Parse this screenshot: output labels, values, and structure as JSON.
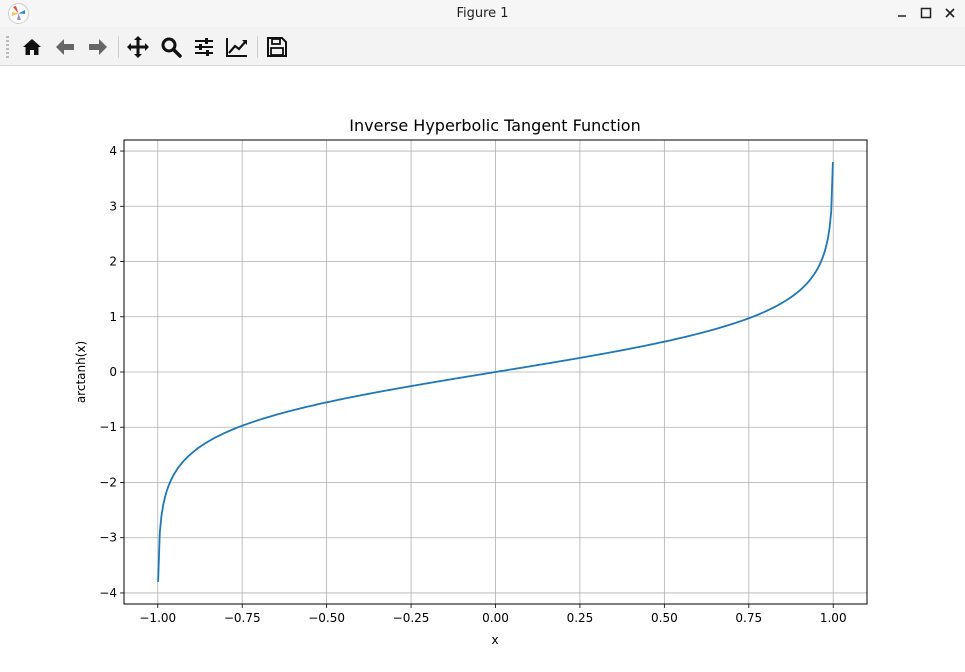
{
  "window": {
    "title": "Figure 1"
  },
  "toolbar": {
    "buttons": [
      {
        "name": "home-button",
        "icon": "home-icon"
      },
      {
        "name": "back-button",
        "icon": "arrow-left-icon"
      },
      {
        "name": "forward-button",
        "icon": "arrow-right-icon"
      },
      {
        "name": "pan-button",
        "icon": "move-icon"
      },
      {
        "name": "zoom-button",
        "icon": "magnifier-icon"
      },
      {
        "name": "configure-subplots-button",
        "icon": "sliders-icon"
      },
      {
        "name": "edit-axis-button",
        "icon": "line-chart-icon"
      },
      {
        "name": "save-button",
        "icon": "floppy-disk-icon"
      }
    ]
  },
  "chart_data": {
    "type": "line",
    "title": "Inverse Hyperbolic Tangent Function",
    "xlabel": "x",
    "ylabel": "arctanh(x)",
    "xlim": [
      -1.1,
      1.1
    ],
    "ylim": [
      -4.2,
      4.2
    ],
    "xticks": [
      -1.0,
      -0.75,
      -0.5,
      -0.25,
      0.0,
      0.25,
      0.5,
      0.75,
      1.0
    ],
    "xtick_labels": [
      "−1.00",
      "−0.75",
      "−0.50",
      "−0.25",
      "0.00",
      "0.25",
      "0.50",
      "0.75",
      "1.00"
    ],
    "yticks": [
      -4,
      -3,
      -2,
      -1,
      0,
      1,
      2,
      3,
      4
    ],
    "ytick_labels": [
      "−4",
      "−3",
      "−2",
      "−1",
      "0",
      "1",
      "2",
      "3",
      "4"
    ],
    "grid": true,
    "series": [
      {
        "color": "#1f77b4",
        "x": [
          -0.999,
          -0.998,
          -0.995,
          -0.99,
          -0.98,
          -0.97,
          -0.95,
          -0.93,
          -0.9,
          -0.85,
          -0.8,
          -0.75,
          -0.7,
          -0.6,
          -0.5,
          -0.4,
          -0.3,
          -0.2,
          -0.1,
          0.0,
          0.1,
          0.2,
          0.3,
          0.4,
          0.5,
          0.6,
          0.7,
          0.75,
          0.8,
          0.85,
          0.9,
          0.93,
          0.95,
          0.97,
          0.98,
          0.99,
          0.995,
          0.998,
          0.999
        ],
        "y": [
          -3.8,
          -3.453,
          -2.994,
          -2.647,
          -2.298,
          -2.092,
          -1.832,
          -1.658,
          -1.472,
          -1.256,
          -1.099,
          -0.973,
          -0.867,
          -0.693,
          -0.549,
          -0.424,
          -0.31,
          -0.203,
          -0.1,
          0.0,
          0.1,
          0.203,
          0.31,
          0.424,
          0.549,
          0.693,
          0.867,
          0.973,
          1.099,
          1.256,
          1.472,
          1.658,
          1.832,
          2.092,
          2.298,
          2.647,
          2.994,
          3.453,
          3.8
        ]
      }
    ]
  }
}
